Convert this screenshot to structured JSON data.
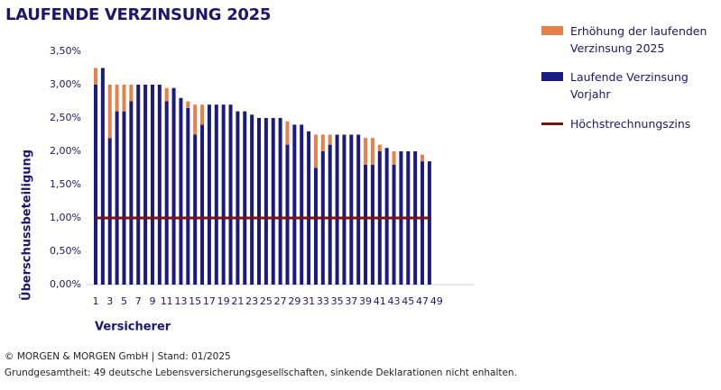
{
  "chart_data": {
    "type": "bar",
    "title": "LAUFENDE VERZINSUNG 2025",
    "xlabel": "Versicherer",
    "ylabel": "Überschussbeteiligung",
    "source": "© MORGEN & MORGEN GmbH | Stand: 01/2025",
    "note": "Grundgesamtheit: 49 deutsche Lebensversicherungsgesellschaften, sinkende Deklarationen nicht enhalten.",
    "categories": [
      "1",
      null,
      "3",
      null,
      "5",
      null,
      "7",
      null,
      "9",
      null,
      "11",
      null,
      "13",
      null,
      "15",
      null,
      "17",
      null,
      "19",
      null,
      "21",
      null,
      "23",
      null,
      "25",
      null,
      "27",
      null,
      "29",
      null,
      "31",
      null,
      "33",
      null,
      "35",
      null,
      "37",
      null,
      "39",
      null,
      "41",
      null,
      "43",
      null,
      "45",
      null,
      "47",
      null,
      "49"
    ],
    "ylim": [
      0,
      3.5
    ],
    "yticks": [
      {
        "value": 0,
        "label": "0,00%"
      },
      {
        "value": 0.5,
        "label": "0,50%"
      },
      {
        "value": 1,
        "label": "1,00%"
      },
      {
        "value": 1.5,
        "label": "1,50%"
      },
      {
        "value": 2,
        "label": "2,00%"
      },
      {
        "value": 2.5,
        "label": "2,50%"
      },
      {
        "value": 3,
        "label": "3,00%"
      },
      {
        "value": 3.5,
        "label": "3,50%"
      }
    ],
    "stacked": true,
    "series": [
      {
        "name": "Laufende Verzinsung Vorjahr",
        "color": "#1b1a80",
        "type": "bar",
        "values": [
          3.0,
          3.25,
          2.2,
          2.6,
          2.6,
          2.75,
          3.0,
          3.0,
          3.0,
          3.0,
          2.75,
          2.95,
          2.8,
          2.65,
          2.25,
          2.4,
          2.7,
          2.7,
          2.7,
          2.7,
          2.6,
          2.6,
          2.55,
          2.5,
          2.5,
          2.5,
          2.5,
          2.1,
          2.4,
          2.4,
          2.3,
          1.75,
          2.0,
          2.1,
          2.25,
          2.25,
          2.25,
          2.25,
          1.8,
          1.8,
          2.0,
          2.05,
          1.8,
          2.0,
          2.0,
          2.0,
          1.85,
          1.85,
          null
        ]
      },
      {
        "name": "Erhöhung der laufenden Verzinsung 2025",
        "color": "#e8804a",
        "type": "bar",
        "values": [
          0.25,
          0,
          0.8,
          0.4,
          0.4,
          0.25,
          0,
          0,
          0,
          0,
          0.2,
          0,
          0,
          0.1,
          0.45,
          0.3,
          0,
          0,
          0,
          0,
          0,
          0,
          0,
          0,
          0,
          0,
          0,
          0.35,
          0,
          0,
          0,
          0.5,
          0.25,
          0.15,
          0,
          0,
          0,
          0,
          0.4,
          0.4,
          0.1,
          0,
          0.2,
          0,
          0,
          0,
          0.1,
          0,
          null
        ]
      },
      {
        "name": "Höchstrechnungszins",
        "color": "#7a1212",
        "type": "line",
        "values": [
          1,
          1,
          1,
          1,
          1,
          1,
          1,
          1,
          1,
          1,
          1,
          1,
          1,
          1,
          1,
          1,
          1,
          1,
          1,
          1,
          1,
          1,
          1,
          1,
          1,
          1,
          1,
          1,
          1,
          1,
          1,
          1,
          1,
          1,
          1,
          1,
          1,
          1,
          1,
          1,
          1,
          1,
          1,
          1,
          1,
          1,
          1,
          1,
          null
        ]
      }
    ]
  }
}
